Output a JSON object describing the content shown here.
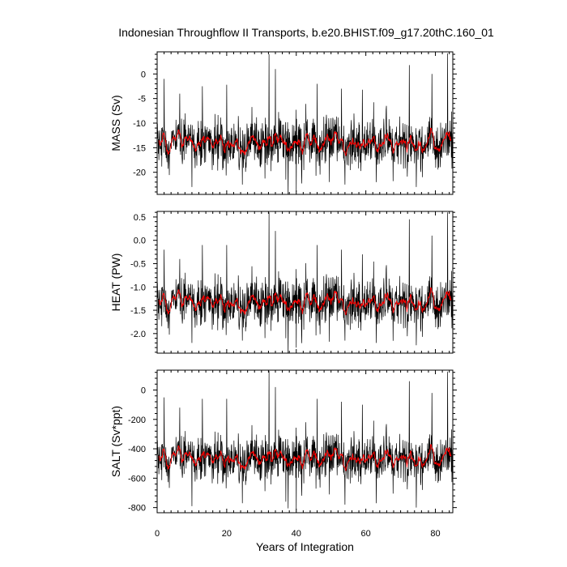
{
  "title": "Indonesian Throughflow II Transports, b.e20.BHIST.f09_g17.20thC.160_01",
  "xlabel": "Years of Integration",
  "chart_data": [
    {
      "type": "line",
      "title": "Indonesian Throughflow II Transports, b.e20.BHIST.f09_g17.20thC.160_01",
      "ylabel": "MASS (Sv)",
      "xlabel": "",
      "xlim": [
        0,
        85
      ],
      "ylim": [
        -24.5,
        4.5
      ],
      "xticks": [
        0,
        20,
        40,
        60,
        80
      ],
      "yticks": [
        0,
        -5,
        -10,
        -15,
        -20
      ],
      "ytick_labels": [
        "0",
        "-5",
        "-10",
        "-15",
        "-20"
      ],
      "mean": -14.2,
      "spread": 3.4,
      "peaks": [
        {
          "x": 2.0,
          "y": -1.0
        },
        {
          "x": 6.5,
          "y": -4.0
        },
        {
          "x": 13.0,
          "y": -2.5
        },
        {
          "x": 20.0,
          "y": -2.2
        },
        {
          "x": 32.2,
          "y": 4.0
        },
        {
          "x": 34.0,
          "y": 1.0
        },
        {
          "x": 46.0,
          "y": -2.0
        },
        {
          "x": 53.0,
          "y": -3.0
        },
        {
          "x": 59.0,
          "y": -3.2
        },
        {
          "x": 72.5,
          "y": 1.8
        },
        {
          "x": 79.0,
          "y": 0.0
        },
        {
          "x": 83.5,
          "y": 4.2
        }
      ],
      "troughs": [
        {
          "x": 10.0,
          "y": -23.0
        },
        {
          "x": 24.5,
          "y": -22.5
        },
        {
          "x": 37.0,
          "y": -21.5
        },
        {
          "x": 40.0,
          "y": -24.0
        },
        {
          "x": 54.0,
          "y": -22.5
        },
        {
          "x": 63.0,
          "y": -22.0
        },
        {
          "x": 74.5,
          "y": -23.0
        }
      ],
      "series": [
        {
          "name": "",
          "role": "raw monthly transport",
          "color": "#000000"
        },
        {
          "name": "",
          "role": "running mean",
          "color": "#ff0000"
        }
      ]
    },
    {
      "type": "line",
      "ylabel": "HEAT (PW)",
      "xlabel": "",
      "xlim": [
        0,
        85
      ],
      "ylim": [
        -2.42,
        0.62
      ],
      "xticks": [
        0,
        20,
        40,
        60,
        80
      ],
      "yticks": [
        0.5,
        0.0,
        -0.5,
        -1.0,
        -1.5,
        -2.0
      ],
      "ytick_labels": [
        "0.5",
        "0.0",
        "-0.5",
        "-1.0",
        "-1.5",
        "-2.0"
      ],
      "mean": -1.35,
      "spread": 0.36,
      "peaks": [
        {
          "x": 2.0,
          "y": -0.2
        },
        {
          "x": 6.5,
          "y": -0.4
        },
        {
          "x": 13.0,
          "y": -0.1
        },
        {
          "x": 20.0,
          "y": -0.1
        },
        {
          "x": 32.2,
          "y": 0.6
        },
        {
          "x": 34.0,
          "y": 0.2
        },
        {
          "x": 46.0,
          "y": -0.1
        },
        {
          "x": 53.0,
          "y": -0.2
        },
        {
          "x": 59.0,
          "y": -0.3
        },
        {
          "x": 72.5,
          "y": 0.45
        },
        {
          "x": 79.0,
          "y": 0.1
        },
        {
          "x": 83.5,
          "y": 0.6
        }
      ],
      "troughs": [
        {
          "x": 10.0,
          "y": -2.2
        },
        {
          "x": 24.5,
          "y": -2.15
        },
        {
          "x": 37.0,
          "y": -2.1
        },
        {
          "x": 40.0,
          "y": -2.3
        },
        {
          "x": 54.0,
          "y": -2.15
        },
        {
          "x": 63.0,
          "y": -2.2
        },
        {
          "x": 74.5,
          "y": -2.25
        }
      ],
      "series": [
        {
          "name": "",
          "role": "raw monthly transport",
          "color": "#000000"
        },
        {
          "name": "",
          "role": "running mean",
          "color": "#ff0000"
        }
      ]
    },
    {
      "type": "line",
      "ylabel": "SALT (Sv*ppt)",
      "xlabel": "Years of Integration",
      "xlim": [
        0,
        85
      ],
      "ylim": [
        -835,
        135
      ],
      "xticks": [
        0,
        20,
        40,
        60,
        80
      ],
      "xtick_labels": [
        "0",
        "20",
        "40",
        "60",
        "80"
      ],
      "yticks": [
        0,
        -200,
        -400,
        -600,
        -800
      ],
      "ytick_labels": [
        "0",
        "-200",
        "-400",
        "-600",
        "-800"
      ],
      "mean": -470,
      "spread": 105,
      "peaks": [
        {
          "x": 2.0,
          "y": -50
        },
        {
          "x": 6.5,
          "y": -120
        },
        {
          "x": 13.0,
          "y": -60
        },
        {
          "x": 20.0,
          "y": -60
        },
        {
          "x": 32.2,
          "y": 130
        },
        {
          "x": 34.0,
          "y": 20
        },
        {
          "x": 46.0,
          "y": -60
        },
        {
          "x": 53.0,
          "y": -80
        },
        {
          "x": 59.0,
          "y": -100
        },
        {
          "x": 72.5,
          "y": 60
        },
        {
          "x": 79.0,
          "y": -20
        },
        {
          "x": 83.5,
          "y": 125
        }
      ],
      "troughs": [
        {
          "x": 10.0,
          "y": -790
        },
        {
          "x": 24.5,
          "y": -770
        },
        {
          "x": 37.0,
          "y": -760
        },
        {
          "x": 40.0,
          "y": -820
        },
        {
          "x": 54.0,
          "y": -780
        },
        {
          "x": 63.0,
          "y": -770
        },
        {
          "x": 74.5,
          "y": -800
        }
      ],
      "series": [
        {
          "name": "",
          "role": "raw monthly transport",
          "color": "#000000"
        },
        {
          "name": "",
          "role": "running mean",
          "color": "#ff0000"
        }
      ]
    }
  ]
}
